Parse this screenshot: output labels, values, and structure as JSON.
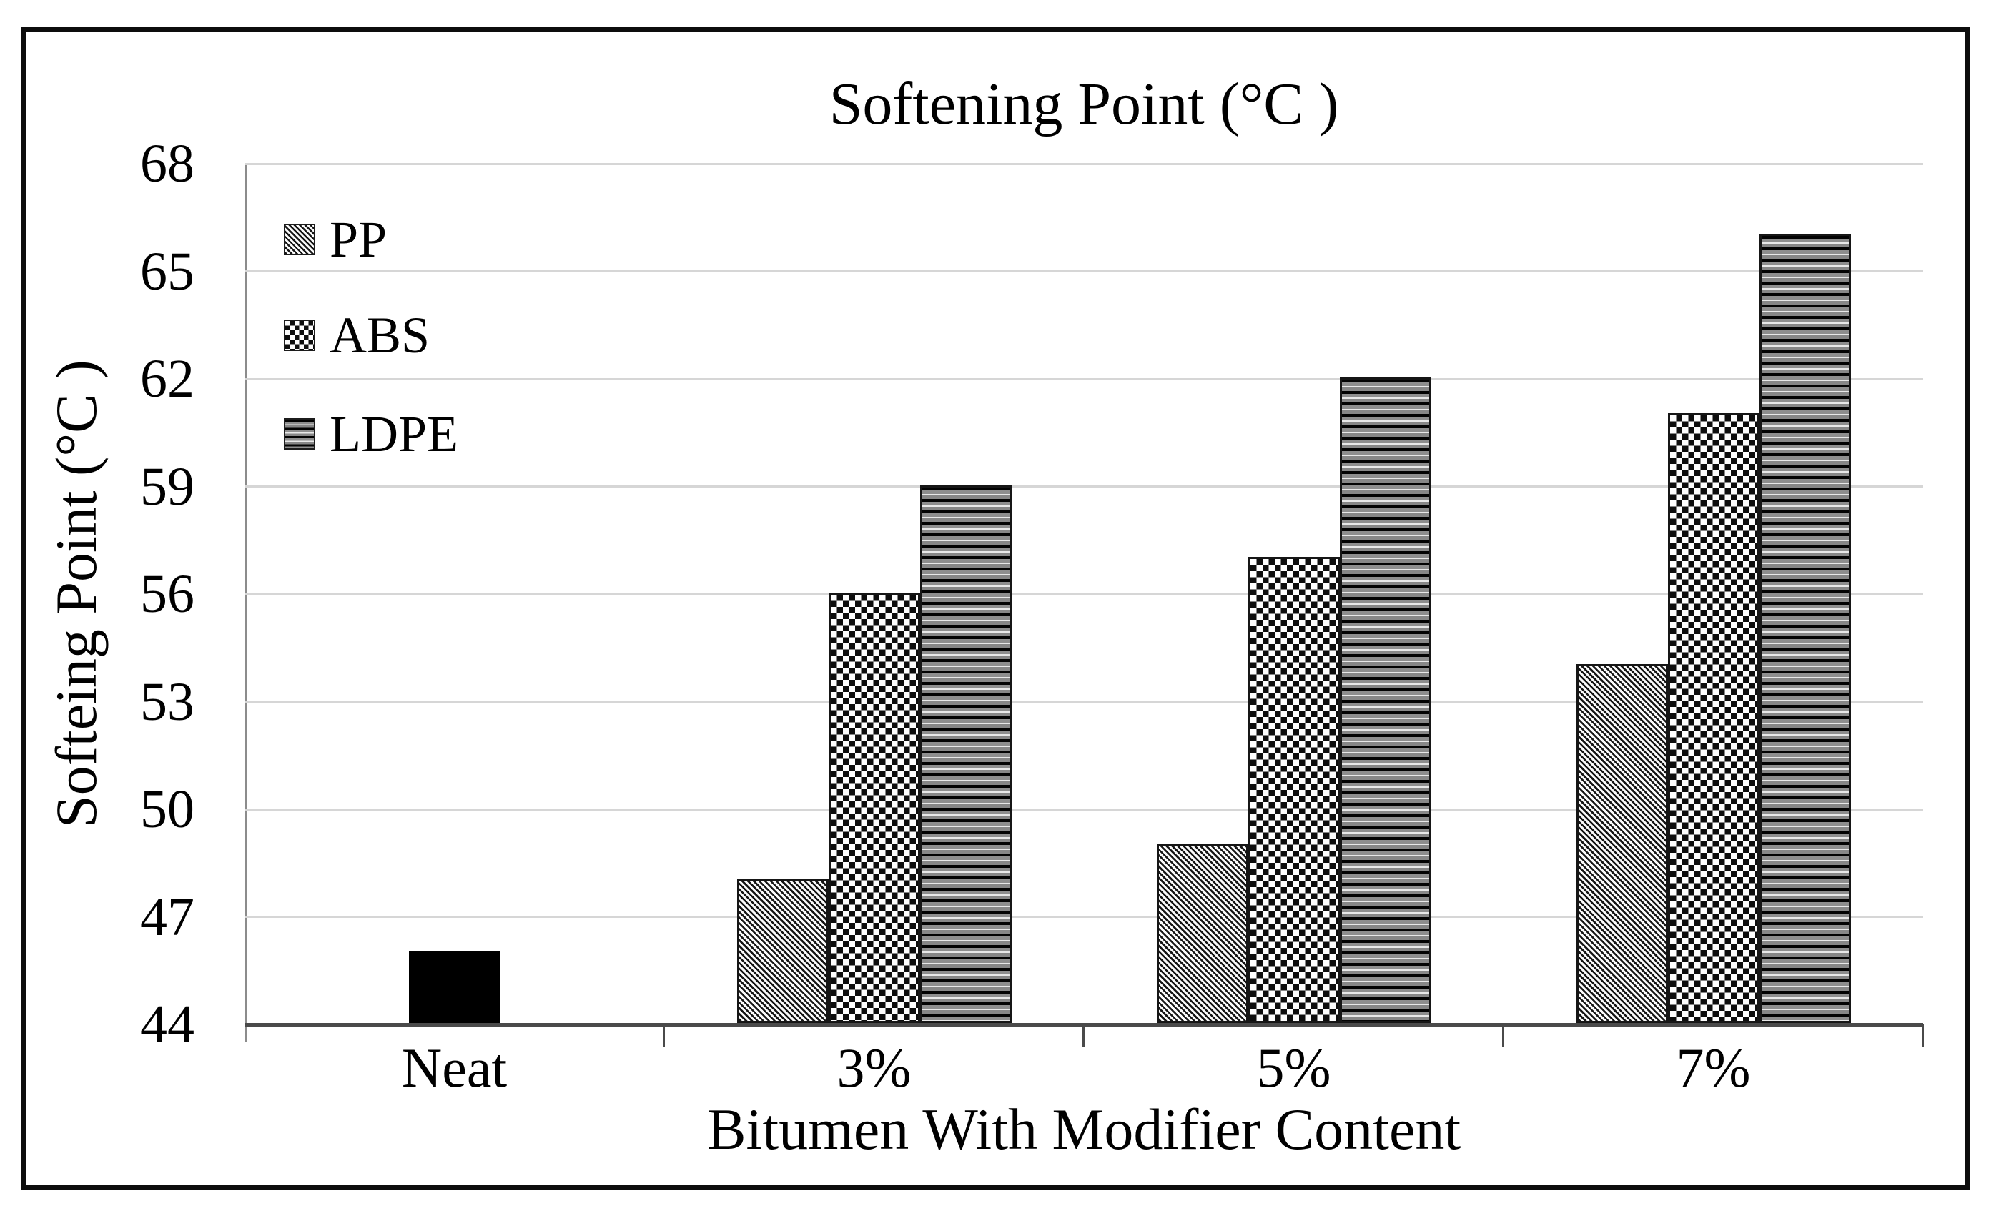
{
  "chart_data": {
    "type": "bar",
    "title": "Softening Point (°C )",
    "ylabel": "Softeing Point (°C )",
    "xlabel": "Bitumen With Modifier Content",
    "ylim": [
      44,
      68
    ],
    "ytick_step": 3,
    "yticks": [
      44,
      47,
      50,
      53,
      56,
      59,
      62,
      65,
      68
    ],
    "grid": "horizontal-light-gray",
    "legend_position": "inside-top-left",
    "legend_entries": [
      "PP",
      "ABS",
      "LDPE"
    ],
    "categories": [
      "Neat",
      "3%",
      "5%",
      "7%"
    ],
    "series": [
      {
        "name": "",
        "pattern": "solid-black",
        "in_legend": false,
        "values": [
          46,
          null,
          null,
          null
        ]
      },
      {
        "name": "PP",
        "pattern": "diagonal-stripes",
        "in_legend": true,
        "values": [
          null,
          48,
          49,
          54
        ]
      },
      {
        "name": "ABS",
        "pattern": "checkerboard",
        "in_legend": true,
        "values": [
          null,
          56,
          57,
          61
        ]
      },
      {
        "name": "LDPE",
        "pattern": "horizontal-stripes",
        "in_legend": true,
        "values": [
          null,
          59,
          62,
          66
        ]
      }
    ],
    "colors": {
      "bar_outline": "#161616",
      "solid_bar": "#000000",
      "gridline": "#d6d6d6",
      "axis_line": "#4a4a4a",
      "frame_border": "#0d0d0d",
      "text": "#000000"
    }
  }
}
